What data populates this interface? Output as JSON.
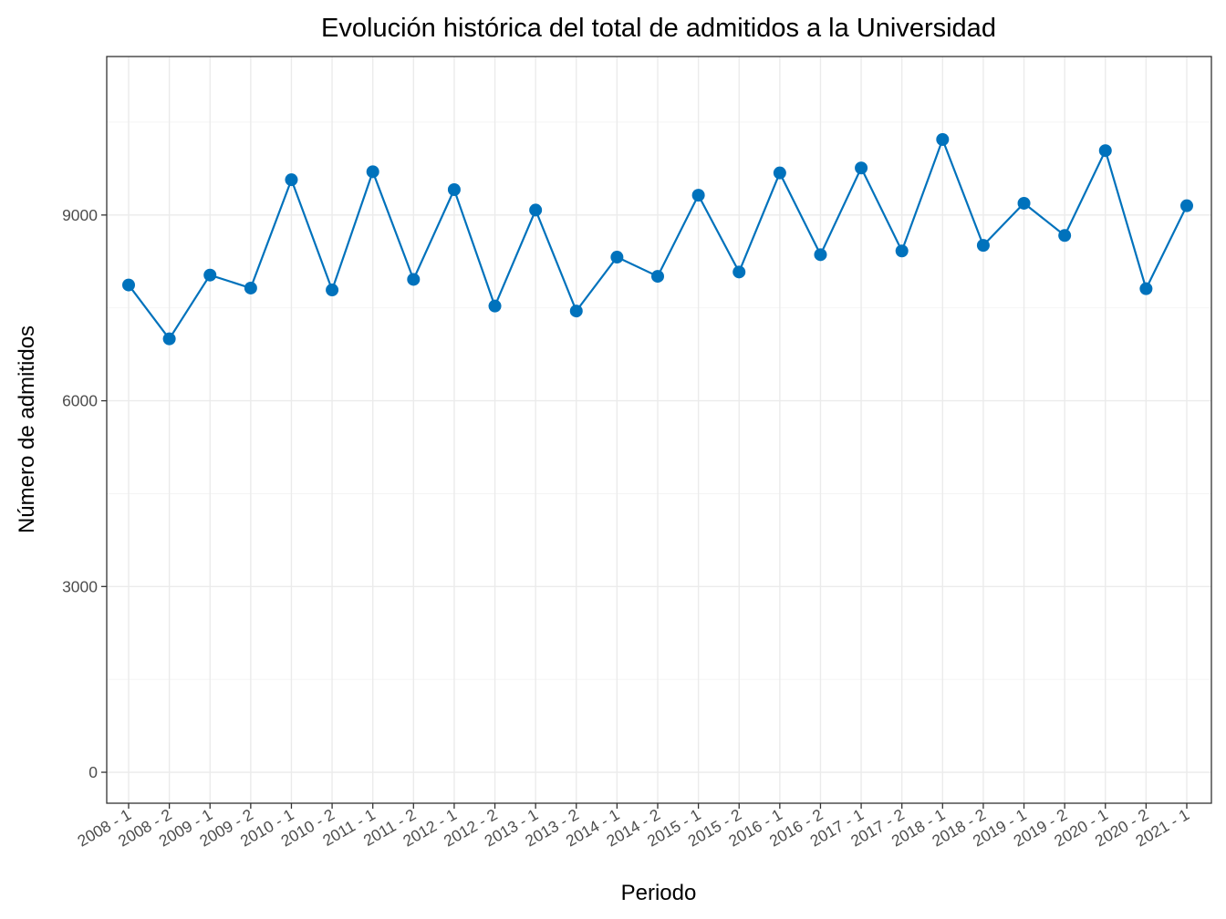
{
  "chart_data": {
    "type": "line",
    "title": "Evolución histórica del total de admitidos a la Universidad",
    "xlabel": "Periodo",
    "ylabel": "Número de admitidos",
    "categories": [
      "2008 - 1",
      "2008 - 2",
      "2009 - 1",
      "2009 - 2",
      "2010 - 1",
      "2010 - 2",
      "2011 - 1",
      "2011 - 2",
      "2012 - 1",
      "2012 - 2",
      "2013 - 1",
      "2013 - 2",
      "2014 - 1",
      "2014 - 2",
      "2015 - 1",
      "2015 - 2",
      "2016 - 1",
      "2016 - 2",
      "2017 - 1",
      "2017 - 2",
      "2018 - 1",
      "2018 - 2",
      "2019 - 1",
      "2019 - 2",
      "2020 - 1",
      "2020 - 2",
      "2021 - 1"
    ],
    "series": [
      {
        "values": [
          7870,
          7000,
          8030,
          7820,
          9570,
          7790,
          9700,
          7960,
          9410,
          7530,
          9080,
          7450,
          8320,
          8010,
          9320,
          8080,
          9680,
          8360,
          9760,
          8420,
          10220,
          8510,
          9190,
          8670,
          10040,
          7810,
          9150
        ]
      }
    ],
    "y_ticks": [
      0,
      3000,
      6000,
      9000
    ],
    "ylim": [
      -500,
      11560
    ],
    "grid": true,
    "legend": "none",
    "colors": {
      "series": "#0072BC",
      "grid": "#ebebeb",
      "border": "#333333"
    }
  }
}
